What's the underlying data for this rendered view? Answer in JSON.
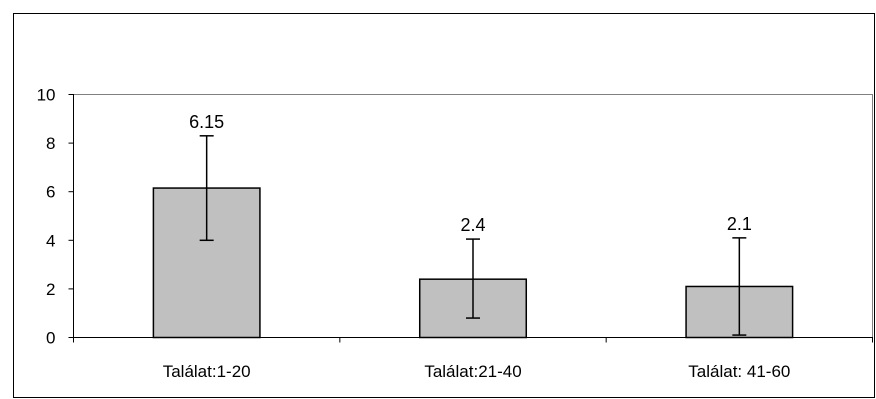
{
  "chart_data": {
    "type": "bar",
    "categories": [
      "Találat:1-20",
      "Találat:21-40",
      "Találat: 41-60"
    ],
    "values": [
      6.15,
      2.4,
      2.1
    ],
    "data_labels": [
      "6.15",
      "2.4",
      "2.1"
    ],
    "error_bars": [
      {
        "low": 4.0,
        "high": 8.3
      },
      {
        "low": 0.8,
        "high": 4.05
      },
      {
        "low": 0.1,
        "high": 4.1
      }
    ],
    "ylim": [
      0,
      10
    ],
    "yticks": [
      0,
      2,
      4,
      6,
      8,
      10
    ],
    "ytick_labels": [
      "0",
      "2",
      "4",
      "6",
      "8",
      "10"
    ],
    "title": "",
    "xlabel": "",
    "ylabel": "",
    "grid": false,
    "legend": "none",
    "colors": {
      "bar_fill": "#c0c0c0",
      "bar_stroke": "#000000",
      "plot_border": "#808080",
      "frame": "#000000"
    }
  }
}
